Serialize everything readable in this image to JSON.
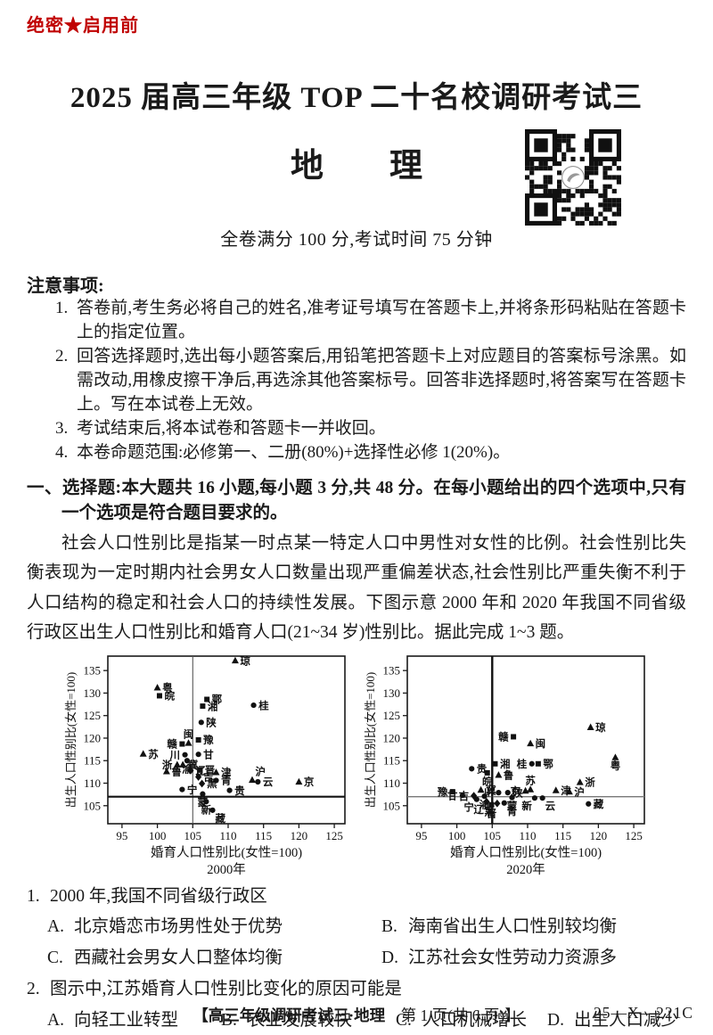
{
  "page": {
    "secret_label": "绝密★启用前",
    "title": "2025 届高三年级 TOP 二十名校调研考试三",
    "subject": "地　　理",
    "score_line": "全卷满分 100 分,考试时间 75 分钟"
  },
  "notice": {
    "title": "注意事项:",
    "items": [
      {
        "num": "1.",
        "text": "答卷前,考生务必将自己的姓名,准考证号填写在答题卡上,并将条形码粘贴在答题卡上的指定位置。"
      },
      {
        "num": "2.",
        "text": "回答选择题时,选出每小题答案后,用铅笔把答题卡上对应题目的答案标号涂黑。如需改动,用橡皮擦干净后,再选涂其他答案标号。回答非选择题时,将答案写在答题卡上。写在本试卷上无效。"
      },
      {
        "num": "3.",
        "text": "考试结束后,将本试卷和答题卡一并收回。"
      },
      {
        "num": "4.",
        "text": "本卷命题范围:必修第一、二册(80%)+选择性必修 1(20%)。"
      }
    ]
  },
  "section": {
    "heading": "一、选择题:本大题共 16 小题,每小题 3 分,共 48 分。在每小题给出的四个选项中,只有一个选项是符合题目要求的。"
  },
  "passage": "社会人口性别比是指某一时点某一特定人口中男性对女性的比例。社会性别比失衡表现为一定时期内社会男女人口数量出现严重偏差状态,社会性别比严重失衡不利于人口结构的稳定和社会人口的持续性发展。下图示意 2000 年和 2020 年我国不同省级行政区出生人口性别比和婚育人口(21~34 岁)性别比。据此完成 1~3 题。",
  "chart_data": [
    {
      "type": "scatter",
      "caption": "2000年",
      "xlabel": "婚育人口性别比(女性=100)",
      "ylabel": "出生人口性别比(女性=100)",
      "xlim": [
        93,
        126.5
      ],
      "ylim": [
        101,
        138.2
      ],
      "xticks": [
        95,
        100,
        105,
        110,
        115,
        120,
        125
      ],
      "yticks": [
        105,
        110,
        115,
        120,
        125,
        130,
        135
      ],
      "ref_vline": {
        "x": 105,
        "width": 1.1,
        "color": "#555555"
      },
      "ref_hline": {
        "y": 107,
        "width": 2.2,
        "color": "#111111"
      },
      "points": [
        {
          "label": "琼",
          "marker": "triangle",
          "x": 111.0,
          "y": 137.2,
          "lp": "r"
        },
        {
          "label": "粤",
          "marker": "triangle",
          "x": 100.0,
          "y": 131.2,
          "lp": "r"
        },
        {
          "label": "皖",
          "marker": "square",
          "x": 100.3,
          "y": 129.4,
          "lp": "r"
        },
        {
          "label": "鄂",
          "marker": "square",
          "x": 107.0,
          "y": 128.6,
          "lp": "r"
        },
        {
          "label": "湘",
          "marker": "square",
          "x": 106.4,
          "y": 127.1,
          "lp": "r"
        },
        {
          "label": "桂",
          "marker": "circle",
          "x": 113.6,
          "y": 127.3,
          "lp": "r"
        },
        {
          "label": "陕",
          "marker": "circle",
          "x": 106.2,
          "y": 123.5,
          "lp": "r"
        },
        {
          "label": "豫",
          "marker": "square",
          "x": 105.8,
          "y": 119.6,
          "lp": "r"
        },
        {
          "label": "闽",
          "marker": "triangle",
          "x": 104.4,
          "y": 118.9,
          "lp": "a"
        },
        {
          "label": "赣",
          "marker": "square",
          "x": 103.5,
          "y": 118.7,
          "lp": "l"
        },
        {
          "label": "苏",
          "marker": "triangle",
          "x": 98.0,
          "y": 116.5,
          "lp": "r"
        },
        {
          "label": "甘",
          "marker": "circle",
          "x": 105.8,
          "y": 116.4,
          "lp": "r"
        },
        {
          "label": "川",
          "marker": "circle",
          "x": 103.9,
          "y": 116.3,
          "lp": "l"
        },
        {
          "label": "渝",
          "marker": "circle",
          "x": 104.2,
          "y": 115.0,
          "lp": "b"
        },
        {
          "label": "冀",
          "marker": "triangle",
          "x": 103.6,
          "y": 114.1,
          "lp": "r"
        },
        {
          "label": "浙",
          "marker": "triangle",
          "x": 102.8,
          "y": 114.1,
          "lp": "l"
        },
        {
          "label": "鲁",
          "marker": "triangle",
          "x": 101.3,
          "y": 112.6,
          "lp": "r"
        },
        {
          "label": "晋",
          "marker": "square",
          "x": 106.0,
          "y": 112.9,
          "lp": "r"
        },
        {
          "label": "辽",
          "marker": "diamond",
          "x": 104.7,
          "y": 112.8,
          "lp": "r"
        },
        {
          "label": "津",
          "marker": "triangle",
          "x": 108.3,
          "y": 112.4,
          "lp": "r"
        },
        {
          "label": "吉",
          "marker": "diamond",
          "x": 105.8,
          "y": 111.4,
          "lp": "r"
        },
        {
          "label": "沪",
          "marker": "triangle",
          "x": 113.4,
          "y": 110.7,
          "lp": "ar"
        },
        {
          "label": "云",
          "marker": "circle",
          "x": 114.2,
          "y": 110.3,
          "lp": "r"
        },
        {
          "label": "京",
          "marker": "triangle",
          "x": 120.0,
          "y": 110.3,
          "lp": "r"
        },
        {
          "label": "青",
          "marker": "circle",
          "x": 108.3,
          "y": 110.6,
          "lp": "r"
        },
        {
          "label": "黑",
          "marker": "diamond",
          "x": 106.3,
          "y": 109.9,
          "lp": "r"
        },
        {
          "label": "贵",
          "marker": "circle",
          "x": 110.2,
          "y": 108.4,
          "lp": "r"
        },
        {
          "label": "宁",
          "marker": "circle",
          "x": 103.5,
          "y": 108.6,
          "lp": "r"
        },
        {
          "label": "蒙",
          "marker": "circle",
          "x": 106.4,
          "y": 107.6,
          "lp": "b"
        },
        {
          "label": "新",
          "marker": "circle",
          "x": 106.9,
          "y": 105.9,
          "lp": "b"
        },
        {
          "label": "藏",
          "marker": "circle",
          "x": 107.8,
          "y": 104.0,
          "lp": "br"
        }
      ]
    },
    {
      "type": "scatter",
      "caption": "2020年",
      "xlabel": "婚育人口性别比(女性=100)",
      "ylabel": "出生人口性别比(女性=100)",
      "xlim": [
        93,
        126.5
      ],
      "ylim": [
        101,
        138.2
      ],
      "xticks": [
        95,
        100,
        105,
        110,
        115,
        120,
        125
      ],
      "yticks": [
        105,
        110,
        115,
        120,
        125,
        130,
        135
      ],
      "ref_vline": {
        "x": 105,
        "width": 2.4,
        "color": "#111111"
      },
      "ref_hline": {
        "y": 107,
        "width": 1.4,
        "color": "#777777"
      },
      "points": [
        {
          "label": "琼",
          "marker": "triangle",
          "x": 118.9,
          "y": 122.4,
          "lp": "r"
        },
        {
          "label": "赣",
          "marker": "square",
          "x": 108.0,
          "y": 120.3,
          "lp": "l"
        },
        {
          "label": "闽",
          "marker": "triangle",
          "x": 110.4,
          "y": 118.8,
          "lp": "r"
        },
        {
          "label": "粤",
          "marker": "triangle",
          "x": 122.4,
          "y": 115.7,
          "lp": "b"
        },
        {
          "label": "湘",
          "marker": "square",
          "x": 105.4,
          "y": 114.3,
          "lp": "r"
        },
        {
          "label": "桂",
          "marker": "circle",
          "x": 110.6,
          "y": 114.3,
          "lp": "l"
        },
        {
          "label": "鄂",
          "marker": "square",
          "x": 111.5,
          "y": 114.3,
          "lp": "r"
        },
        {
          "label": "贵",
          "marker": "circle",
          "x": 102.1,
          "y": 113.2,
          "lp": "r"
        },
        {
          "label": "鲁",
          "marker": "triangle",
          "x": 105.9,
          "y": 111.8,
          "lp": "r"
        },
        {
          "label": "皖",
          "marker": "square",
          "x": 104.3,
          "y": 112.3,
          "lp": "b"
        },
        {
          "label": "浙",
          "marker": "triangle",
          "x": 117.4,
          "y": 110.2,
          "lp": "r"
        },
        {
          "label": "苏",
          "marker": "triangle",
          "x": 110.4,
          "y": 108.6,
          "lp": "a"
        },
        {
          "label": "津",
          "marker": "triangle",
          "x": 114.0,
          "y": 108.4,
          "lp": "r"
        },
        {
          "label": "沪",
          "marker": "triangle",
          "x": 115.9,
          "y": 108.1,
          "lp": "r"
        },
        {
          "label": "京",
          "marker": "triangle",
          "x": 109.7,
          "y": 108.3,
          "lp": "l"
        },
        {
          "label": "冀",
          "marker": "triangle",
          "x": 103.4,
          "y": 108.5,
          "lp": "r"
        },
        {
          "label": "豫",
          "marker": "square",
          "x": 99.4,
          "y": 108.1,
          "lp": "l"
        },
        {
          "label": "甘",
          "marker": "circle",
          "x": 100.8,
          "y": 107.3,
          "lp": "l"
        },
        {
          "label": "吉",
          "marker": "diamond",
          "x": 102.4,
          "y": 107.2,
          "lp": "l"
        },
        {
          "label": "渝",
          "marker": "circle",
          "x": 103.9,
          "y": 107.1,
          "lp": "b"
        },
        {
          "label": "川",
          "marker": "circle",
          "x": 105.9,
          "y": 107.9,
          "lp": "l"
        },
        {
          "label": "陕",
          "marker": "circle",
          "x": 107.2,
          "y": 107.9,
          "lp": "r"
        },
        {
          "label": "蒙",
          "marker": "circle",
          "x": 107.8,
          "y": 106.8,
          "lp": "b"
        },
        {
          "label": "宁",
          "marker": "circle",
          "x": 102.8,
          "y": 106.4,
          "lp": "bl"
        },
        {
          "label": "辽",
          "marker": "diamond",
          "x": 104.2,
          "y": 105.9,
          "lp": "bl"
        },
        {
          "label": "晋",
          "marker": "square",
          "x": 104.9,
          "y": 105.2,
          "lp": "b"
        },
        {
          "label": "黑",
          "marker": "diamond",
          "x": 105.7,
          "y": 105.5,
          "lp": "bl"
        },
        {
          "label": "青",
          "marker": "circle",
          "x": 106.7,
          "y": 105.6,
          "lp": "br"
        },
        {
          "label": "新",
          "marker": "circle",
          "x": 111.0,
          "y": 106.7,
          "lp": "bl"
        },
        {
          "label": "云",
          "marker": "circle",
          "x": 112.1,
          "y": 106.7,
          "lp": "br"
        },
        {
          "label": "藏",
          "marker": "circle",
          "x": 118.6,
          "y": 105.4,
          "lp": "r"
        }
      ]
    }
  ],
  "questions": [
    {
      "num": "1.",
      "stem": "2000 年,我国不同省级行政区",
      "options": [
        {
          "key": "A.",
          "text": "北京婚恋市场男性处于优势"
        },
        {
          "key": "B.",
          "text": "海南省出生人口性别较均衡"
        },
        {
          "key": "C.",
          "text": "西藏社会男女人口整体均衡"
        },
        {
          "key": "D.",
          "text": "江苏社会女性劳动力资源多"
        }
      ]
    },
    {
      "num": "2.",
      "stem": "图示中,江苏婚育人口性别比变化的原因可能是",
      "options": [
        {
          "key": "A.",
          "text": "向轻工业转型"
        },
        {
          "key": "B.",
          "text": "农业发展较快"
        },
        {
          "key": "C.",
          "text": "人口机械增长"
        },
        {
          "key": "D.",
          "text": "出生人口减少"
        }
      ]
    }
  ],
  "footer": {
    "title_part": "【高三年级调研考试三·地理",
    "page_part": "　第 1 页(共 6 页)】",
    "code": "25—X—221C"
  }
}
